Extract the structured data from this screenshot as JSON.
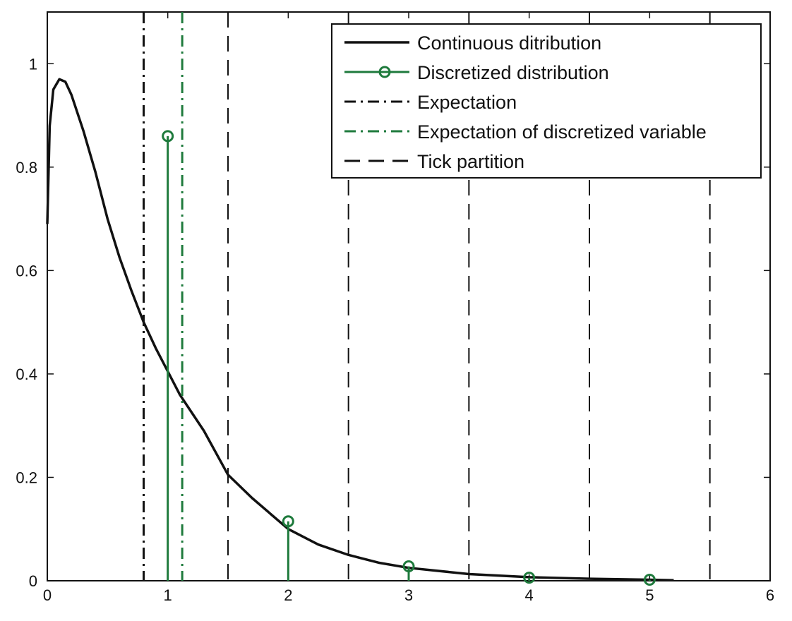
{
  "chart_data": {
    "type": "line",
    "title": "",
    "xlabel": "",
    "ylabel": "",
    "xlim": [
      0,
      6
    ],
    "ylim": [
      0,
      1.1
    ],
    "xticks": [
      0,
      1,
      2,
      3,
      4,
      5,
      6
    ],
    "yticks": [
      0,
      0.2,
      0.4,
      0.6,
      0.8,
      1
    ],
    "xtick_labels": [
      "0",
      "1",
      "2",
      "3",
      "4",
      "5",
      "6"
    ],
    "ytick_labels": [
      "0",
      "0.2",
      "0.4",
      "0.6",
      "0.8",
      "1"
    ],
    "grid": false,
    "legend_position": "top-right",
    "series": [
      {
        "name": "Continuous ditribution",
        "style": "solid",
        "color": "#111111",
        "x": [
          0,
          0.02,
          0.05,
          0.1,
          0.15,
          0.2,
          0.3,
          0.4,
          0.5,
          0.6,
          0.7,
          0.8,
          0.9,
          1.0,
          1.1,
          1.2,
          1.3,
          1.5,
          1.7,
          2.0,
          2.25,
          2.5,
          2.75,
          3.0,
          3.5,
          4.0,
          4.5,
          5.0,
          5.2
        ],
        "y": [
          0.69,
          0.88,
          0.95,
          0.97,
          0.965,
          0.94,
          0.87,
          0.79,
          0.7,
          0.625,
          0.56,
          0.5,
          0.45,
          0.405,
          0.36,
          0.325,
          0.29,
          0.205,
          0.16,
          0.1,
          0.07,
          0.05,
          0.035,
          0.025,
          0.013,
          0.007,
          0.004,
          0.002,
          0.001
        ]
      },
      {
        "name": "Discretized distribution",
        "style": "stem",
        "marker": "circle",
        "color": "#1e7a3c",
        "x": [
          1,
          2,
          3,
          4,
          5
        ],
        "y": [
          0.86,
          0.115,
          0.028,
          0.006,
          0.002
        ]
      },
      {
        "name": "Expectation",
        "style": "dash-dot",
        "color": "#111111",
        "x": [
          0.8
        ]
      },
      {
        "name": "Expectation of discretized variable",
        "style": "dash-dot",
        "color": "#1e7a3c",
        "x": [
          1.12
        ]
      },
      {
        "name": "Tick partition",
        "style": "dashed",
        "color": "#111111",
        "x": [
          1.5,
          2.5,
          3.5,
          4.5,
          5.5
        ]
      }
    ],
    "colors": {
      "black": "#111111",
      "green": "#1e7a3c",
      "background": "#ffffff"
    }
  }
}
